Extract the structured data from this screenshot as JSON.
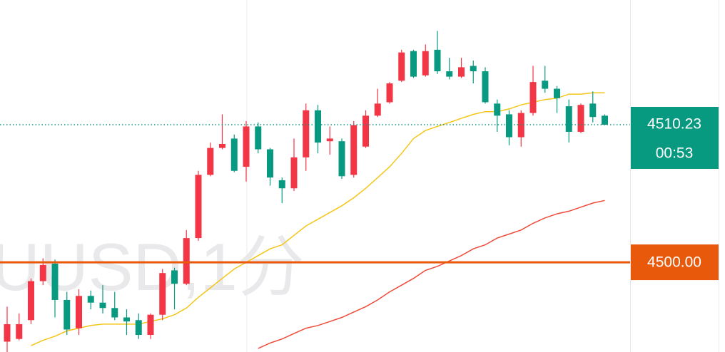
{
  "chart_data": {
    "type": "candlestick",
    "watermark": "UUSD,1分",
    "ylim": [
      4493.33,
      4519.5
    ],
    "up_color": "#f23645",
    "down_color": "#089981",
    "open": [
      4494.1,
      4494.3,
      4495.7,
      4498.6,
      4499.9,
      4497.2,
      4495.1,
      4497.5,
      4497.0,
      4496.6,
      4495.9,
      4495.7,
      4494.6,
      4496.1,
      4499.4,
      4498.4,
      4501.8,
      4506.5,
      4508.5,
      4509.2,
      4507.1,
      4510.1,
      4508.4,
      4506.1,
      4505.5,
      4507.8,
      4511.3,
      4509.0,
      4509.0,
      4506.5,
      4508.6,
      4510.9,
      4511.9,
      4513.5,
      4515.7,
      4513.9,
      4515.8,
      4514.2,
      4513.8,
      4514.6,
      4514.2,
      4511.8,
      4511.0,
      4509.3,
      4511.1,
      4513.5,
      4512.9,
      4511.6,
      4509.7,
      4511.8,
      4510.9
    ],
    "high": [
      4496.7,
      4496.2,
      4498.8,
      4500.3,
      4500.2,
      4497.8,
      4498.0,
      4497.9,
      4498.3,
      4497.8,
      4496.5,
      4496.2,
      4496.2,
      4499.5,
      4499.6,
      4502.4,
      4506.8,
      4508.9,
      4511.0,
      4509.5,
      4510.5,
      4510.4,
      4508.5,
      4506.3,
      4509.2,
      4511.8,
      4511.7,
      4510.1,
      4509.2,
      4510.5,
      4511.3,
      4512.9,
      4513.4,
      4515.8,
      4515.8,
      4516.2,
      4517.2,
      4515.2,
      4515.2,
      4515.0,
      4514.5,
      4512.1,
      4511.3,
      4511.3,
      4514.6,
      4514.6,
      4513.1,
      4512.1,
      4511.8,
      4512.7,
      4511.0
    ],
    "low": [
      4493.3,
      4494.2,
      4495.4,
      4498.3,
      4495.9,
      4494.6,
      4494.6,
      4496.5,
      4496.2,
      4495.7,
      4494.6,
      4494.3,
      4494.3,
      4495.7,
      4496.5,
      4498.3,
      4501.6,
      4506.4,
      4508.4,
      4506.7,
      4506.0,
      4508.1,
      4505.7,
      4504.4,
      4505.3,
      4506.8,
      4508.1,
      4508.0,
      4506.2,
      4506.3,
      4508.5,
      4510.8,
      4511.8,
      4513.4,
      4513.7,
      4513.8,
      4514.0,
      4513.6,
      4513.7,
      4513.3,
      4511.8,
      4509.7,
      4508.7,
      4508.6,
      4510.9,
      4512.6,
      4511.1,
      4508.9,
      4509.6,
      4510.4,
      4510.2
    ],
    "close": [
      4495.4,
      4495.4,
      4498.6,
      4499.8,
      4497.2,
      4495.0,
      4497.5,
      4497.0,
      4496.6,
      4495.9,
      4495.6,
      4494.6,
      4496.1,
      4499.2,
      4498.4,
      4501.8,
      4506.5,
      4508.5,
      4508.8,
      4506.8,
      4510.1,
      4508.4,
      4506.3,
      4505.5,
      4507.8,
      4511.3,
      4508.9,
      4509.2,
      4506.4,
      4510.2,
      4510.9,
      4511.8,
      4513.3,
      4515.6,
      4513.8,
      4515.7,
      4514.2,
      4513.8,
      4514.5,
      4514.2,
      4511.9,
      4510.9,
      4509.3,
      4511.1,
      4513.4,
      4512.9,
      4512.2,
      4509.7,
      4511.7,
      4510.8,
      4510.23
    ],
    "lines": [
      {
        "color": "#f5c518",
        "values": [
          null,
          null,
          4493.8,
          4494.2,
          4494.5,
          4494.9,
          4495.1,
          4495.3,
          4495.4,
          4495.4,
          4495.4,
          4495.4,
          4495.6,
          4495.8,
          4496.1,
          4496.6,
          4497.4,
          4498.1,
          4498.8,
          4499.5,
          4500.0,
          4500.5,
          4501.0,
          4501.3,
          4502.0,
          4502.7,
          4503.2,
          4503.7,
          4504.2,
          4504.8,
          4505.5,
          4506.3,
          4507.1,
          4508.1,
          4509.2,
          4509.8,
          4510.1,
          4510.4,
          4510.7,
          4511.0,
          4511.2,
          4511.2,
          4511.4,
          4511.7,
          4511.9,
          4512.1,
          4512.2,
          4512.5,
          4512.5,
          4512.6,
          4512.6
        ]
      },
      {
        "color": "#f04a3a",
        "values": [
          null,
          null,
          null,
          null,
          null,
          null,
          null,
          null,
          null,
          null,
          null,
          null,
          null,
          null,
          null,
          null,
          null,
          null,
          null,
          null,
          null,
          4493.6,
          4494.0,
          4494.3,
          4494.7,
          4495.1,
          4495.3,
          4495.6,
          4495.9,
          4496.3,
          4496.7,
          4497.2,
          4497.8,
          4498.3,
          4498.8,
          4499.4,
          4499.7,
          4500.1,
          4500.5,
          4501.0,
          4501.3,
          4501.8,
          4502.1,
          4502.4,
          4502.9,
          4503.3,
          4503.6,
          4503.8,
          4504.1,
          4504.4,
          4504.6
        ]
      }
    ],
    "last_price": 4510.23,
    "countdown": "00:53",
    "level": {
      "value": 4500,
      "label": "4500.00"
    },
    "level_color": "#e8590c"
  }
}
